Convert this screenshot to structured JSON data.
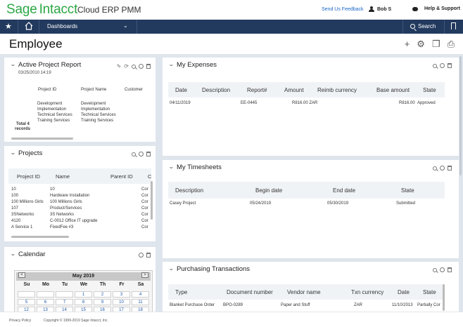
{
  "brand": {
    "sage": "Sage",
    "intacct": "Intacct",
    "product": "Cloud ERP PMM"
  },
  "header": {
    "feedback": "Send Us Feedback",
    "user": "Bob S",
    "help": "Help & Support"
  },
  "nav": {
    "dashboards": "Dashboards",
    "search": "Search"
  },
  "page": {
    "title": "Employee"
  },
  "active_project_report": {
    "title": "Active Project Report",
    "timestamp": "03/25/2010 14:19",
    "columns": [
      "Project ID",
      "Project Name",
      "Customer"
    ],
    "ids": [
      "Development",
      "Implementation",
      "Technical Services",
      "Training Services"
    ],
    "names": [
      "Development",
      "Implementation",
      "Technical Services",
      "Training Services"
    ],
    "total_label": "Total 4",
    "total_sub": "records"
  },
  "projects": {
    "title": "Projects",
    "columns": [
      "Project ID",
      "Name",
      "Parent ID",
      "C"
    ],
    "rows": [
      [
        "10",
        "10",
        "",
        "Cor"
      ],
      [
        "100",
        "Hardware Installation",
        "",
        "Cor"
      ],
      [
        "100 Millions Girls",
        "100 Millions Girls",
        "",
        "Cor"
      ],
      [
        "107",
        "Product/Services",
        "",
        "Cor"
      ],
      [
        "3SNetworks",
        "3S Networks",
        "",
        "Cor"
      ],
      [
        "4120",
        "C-0012 Office IT upgrade",
        "",
        "Cor"
      ],
      [
        "A Service 1",
        "FixedFee #3",
        "",
        "Cor"
      ]
    ]
  },
  "calendar": {
    "title": "Calendar",
    "month": "May 2019",
    "prev": "<",
    "next": ">",
    "days": [
      "Su",
      "Mo",
      "Tu",
      "We",
      "Th",
      "Fr",
      "Sa"
    ],
    "weeks": [
      [
        "",
        "",
        "",
        "1",
        "2",
        "3",
        "4"
      ],
      [
        "5",
        "6",
        "7",
        "8",
        "9",
        "10",
        "11"
      ],
      [
        "12",
        "13",
        "14",
        "15",
        "16",
        "17",
        "18"
      ]
    ]
  },
  "my_expenses": {
    "title": "My Expenses",
    "columns": [
      "Date",
      "Description",
      "Report#",
      "Amount",
      "Reimb currency",
      "Base amount",
      "State"
    ],
    "rows": [
      [
        "04/11/2019",
        "",
        "EE-0445",
        "R816.00 ZAR",
        "",
        "R816.00",
        "Approved"
      ]
    ]
  },
  "my_timesheets": {
    "title": "My Timesheets",
    "columns": [
      "Description",
      "Begin date",
      "End date",
      "State"
    ],
    "rows": [
      [
        "Casey Project",
        "05/24/2019",
        "05/30/2019",
        "Submitted"
      ]
    ]
  },
  "purchasing": {
    "title": "Purchasing Transactions",
    "columns": [
      "Type",
      "Document number",
      "Vendor name",
      "Txn currency",
      "Date",
      "State"
    ],
    "rows": [
      [
        "Blanket Purchase Order",
        "BPO-0289",
        "Paper and Stuff",
        "ZAR",
        "11/10/2013",
        "Partially Cor"
      ]
    ]
  },
  "footer": {
    "privacy": "Privacy Policy",
    "copyright": "Copyright © 1999-2019 Sage Intacct, Inc."
  }
}
